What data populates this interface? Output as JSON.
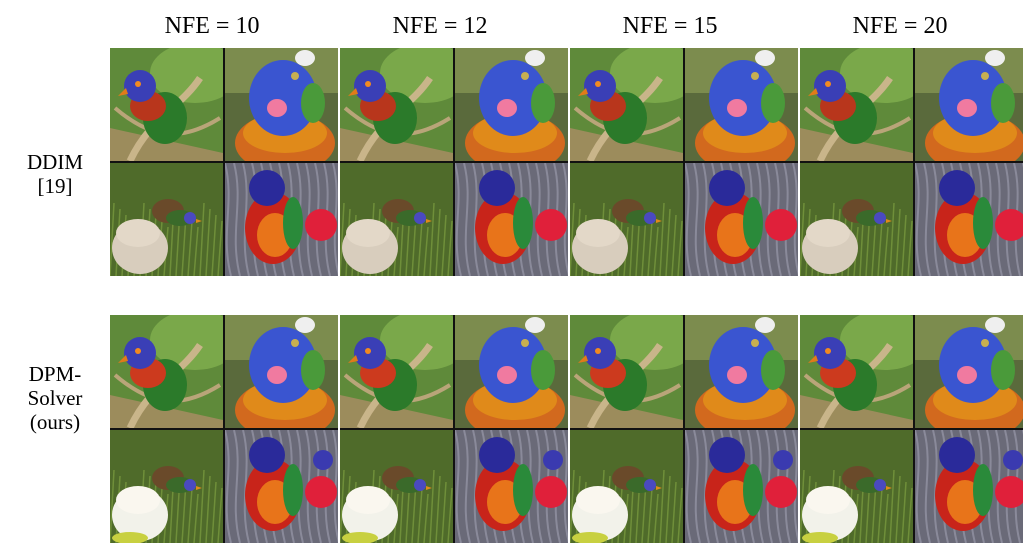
{
  "columns": [
    {
      "label": "NFE = 10"
    },
    {
      "label": "NFE = 12"
    },
    {
      "label": "NFE = 15"
    },
    {
      "label": "NFE = 20"
    }
  ],
  "rows": [
    {
      "label_line1": "DDIM",
      "label_line2": "[19]",
      "label_line3": ""
    },
    {
      "label_line1": "DPM-",
      "label_line2": "Solver",
      "label_line3": "(ours)"
    }
  ],
  "samples": [
    {
      "subject": "lorikeet on branch"
    },
    {
      "subject": "lorikeet close-up"
    },
    {
      "subject": "bird on grass"
    },
    {
      "subject": "lorikeet with red flower"
    }
  ]
}
